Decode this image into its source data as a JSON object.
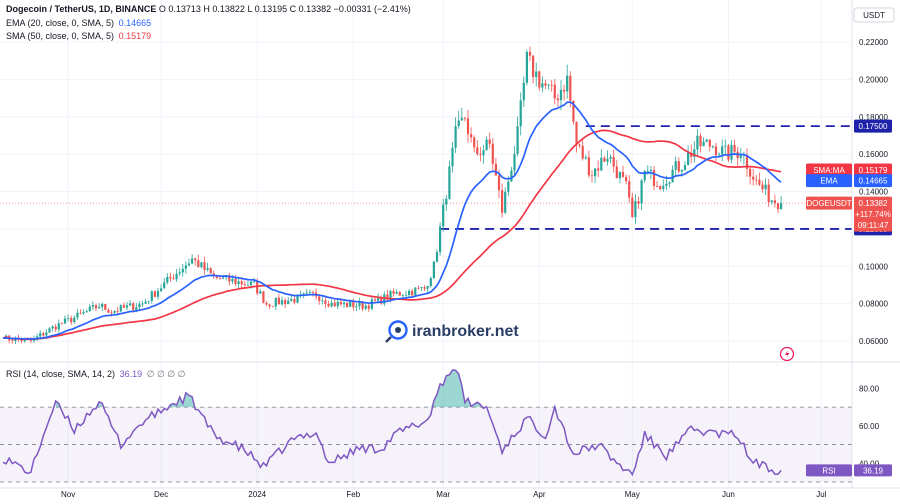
{
  "header": {
    "symbol": "Dogecoin / TetherUS, 1D, BINANCE",
    "ohlc": "O 0.13713  H 0.13822  L 0.13195  C 0.13382  −0.00331 (−2.41%)",
    "ema_label": "EMA (20, close, 0, SMA, 5)",
    "ema_value": "0.14665",
    "sma_label": "SMA (50, close, 0, SMA, 5)",
    "sma_value": "0.15179",
    "rsi_label": "RSI (14, close, SMA, 14, 2)",
    "rsi_value": "36.19",
    "rsi_extra": "∅ ∅ ∅ ∅",
    "currency": "USDT"
  },
  "watermark": "iranbroker.net",
  "price_tags": {
    "top_level": "0.17500",
    "sma_tag": "SMA:MA",
    "sma_value": "0.15179",
    "ema_tag": "EMA",
    "ema_value": "0.14665",
    "symbol_tag": "DOGEUSDT",
    "close_value": "0.13382",
    "change_pct": "+117.74%",
    "countdown": "09:11:47",
    "bottom_level": "0.12000",
    "rsi_tag": "RSI",
    "rsi_value": "36.19"
  },
  "colors": {
    "up": "#26a69a",
    "down": "#ef5350",
    "ema": "#2962ff",
    "sma": "#f23645",
    "levels": "#1e22aa",
    "rsi": "#7e57c2",
    "rsi_fill": "#26a69a"
  },
  "chart_data": [
    {
      "type": "candlestick",
      "title": "Dogecoin / TetherUS, 1D, BINANCE",
      "ylabel": "USDT",
      "ylim": [
        0.052,
        0.235
      ],
      "y_ticks": [
        "0.22000",
        "0.20000",
        "0.18000",
        "0.16000",
        "0.14000",
        "0.12000",
        "0.10000",
        "0.08000",
        "0.06000"
      ],
      "x_ticks": [
        "Nov",
        "Dec",
        "2024",
        "Feb",
        "Mar",
        "Apr",
        "May",
        "Jun",
        "Jul"
      ],
      "horizontal_levels": [
        0.175,
        0.12
      ],
      "close_anchors": [
        [
          "2023-10-11",
          0.0615
        ],
        [
          "2023-10-20",
          0.06
        ],
        [
          "2023-10-28",
          0.068
        ],
        [
          "2023-11-05",
          0.074
        ],
        [
          "2023-11-11",
          0.079
        ],
        [
          "2023-11-15",
          0.076
        ],
        [
          "2023-11-25",
          0.08
        ],
        [
          "2023-12-05",
          0.095
        ],
        [
          "2023-12-11",
          0.104
        ],
        [
          "2023-12-18",
          0.094
        ],
        [
          "2023-12-31",
          0.09
        ],
        [
          "2024-01-04",
          0.08
        ],
        [
          "2024-01-12",
          0.082
        ],
        [
          "2024-01-20",
          0.085
        ],
        [
          "2024-01-25",
          0.08
        ],
        [
          "2024-02-05",
          0.079
        ],
        [
          "2024-02-14",
          0.085
        ],
        [
          "2024-02-24",
          0.088
        ],
        [
          "2024-02-27",
          0.1
        ],
        [
          "2024-03-01",
          0.13
        ],
        [
          "2024-03-05",
          0.17
        ],
        [
          "2024-03-08",
          0.18
        ],
        [
          "2024-03-11",
          0.16
        ],
        [
          "2024-03-16",
          0.165
        ],
        [
          "2024-03-20",
          0.13
        ],
        [
          "2024-03-25",
          0.17
        ],
        [
          "2024-03-28",
          0.21
        ],
        [
          "2024-04-01",
          0.2
        ],
        [
          "2024-04-06",
          0.19
        ],
        [
          "2024-04-10",
          0.2
        ],
        [
          "2024-04-13",
          0.165
        ],
        [
          "2024-04-18",
          0.15
        ],
        [
          "2024-04-23",
          0.16
        ],
        [
          "2024-04-29",
          0.142
        ],
        [
          "2024-05-01",
          0.125
        ],
        [
          "2024-05-05",
          0.15
        ],
        [
          "2024-05-10",
          0.145
        ],
        [
          "2024-05-17",
          0.155
        ],
        [
          "2024-05-22",
          0.165
        ],
        [
          "2024-05-27",
          0.165
        ],
        [
          "2024-05-31",
          0.16
        ],
        [
          "2024-06-05",
          0.162
        ],
        [
          "2024-06-10",
          0.145
        ],
        [
          "2024-06-15",
          0.136
        ],
        [
          "2024-06-18",
          0.1338
        ]
      ],
      "series": [
        {
          "name": "EMA (20, close, 0, SMA, 5)",
          "last": 0.14665
        },
        {
          "name": "SMA (50, close, 0, SMA, 5)",
          "last": 0.15179
        }
      ],
      "last_close": 0.13382
    },
    {
      "type": "line",
      "title": "RSI (14, close, SMA, 14, 2)",
      "ylim": [
        30,
        92
      ],
      "y_ticks": [
        "80.00",
        "60.00",
        "40.00"
      ],
      "band": [
        30,
        70
      ],
      "rsi_anchors": [
        [
          "2023-10-11",
          43
        ],
        [
          "2023-10-20",
          35
        ],
        [
          "2023-10-25",
          60
        ],
        [
          "2023-10-28",
          72
        ],
        [
          "2023-11-03",
          58
        ],
        [
          "2023-11-11",
          73
        ],
        [
          "2023-11-18",
          50
        ],
        [
          "2023-11-25",
          62
        ],
        [
          "2023-12-05",
          72
        ],
        [
          "2023-12-10",
          76
        ],
        [
          "2023-12-18",
          55
        ],
        [
          "2023-12-28",
          47
        ],
        [
          "2024-01-03",
          38
        ],
        [
          "2024-01-12",
          52
        ],
        [
          "2024-01-20",
          57
        ],
        [
          "2024-01-24",
          40
        ],
        [
          "2024-02-03",
          48
        ],
        [
          "2024-02-10",
          48
        ],
        [
          "2024-02-15",
          56
        ],
        [
          "2024-02-25",
          63
        ],
        [
          "2024-02-29",
          82
        ],
        [
          "2024-03-05",
          92
        ],
        [
          "2024-03-08",
          73
        ],
        [
          "2024-03-15",
          70
        ],
        [
          "2024-03-20",
          47
        ],
        [
          "2024-03-28",
          64
        ],
        [
          "2024-04-03",
          55
        ],
        [
          "2024-04-06",
          70
        ],
        [
          "2024-04-12",
          45
        ],
        [
          "2024-04-20",
          50
        ],
        [
          "2024-04-26",
          40
        ],
        [
          "2024-05-01",
          34
        ],
        [
          "2024-05-05",
          55
        ],
        [
          "2024-05-12",
          44
        ],
        [
          "2024-05-20",
          58
        ],
        [
          "2024-05-28",
          56
        ],
        [
          "2024-06-04",
          55
        ],
        [
          "2024-06-08",
          42
        ],
        [
          "2024-06-14",
          37
        ],
        [
          "2024-06-18",
          36.19
        ]
      ],
      "last": 36.19
    }
  ]
}
